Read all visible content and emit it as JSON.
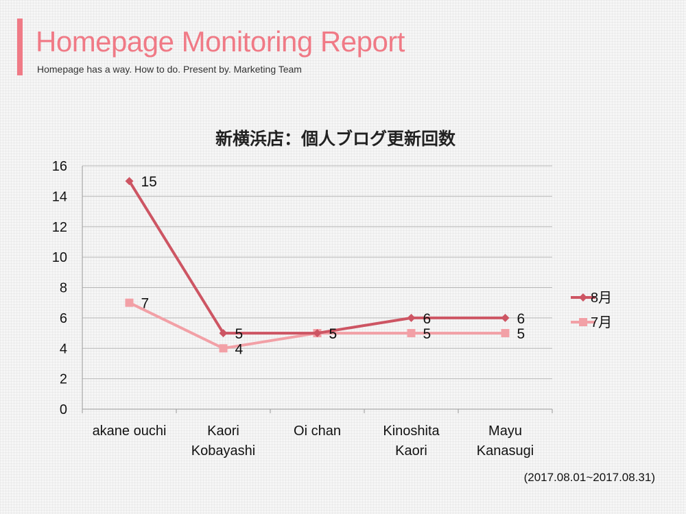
{
  "header": {
    "title": "Homepage Monitoring Report",
    "subtitle": "Homepage has a way. How to do. Present by. Marketing Team",
    "accent_color": "#f07a86"
  },
  "footnote": "(2017.08.01~2017.08.31)",
  "chart_data": {
    "type": "line",
    "title": "新横浜店：個人ブログ更新回数",
    "xlabel": "",
    "ylabel": "",
    "categories": [
      "akane ouchi",
      "Kaori Kobayashi",
      "Oi chan",
      "Kinoshita Kaori",
      "Mayu Kanasugi"
    ],
    "category_lines": [
      [
        "akane ouchi"
      ],
      [
        "Kaori",
        "Kobayashi"
      ],
      [
        "Oi chan"
      ],
      [
        "Kinoshita",
        "Kaori"
      ],
      [
        "Mayu",
        "Kanasugi"
      ]
    ],
    "ylim": [
      0,
      16
    ],
    "yticks": [
      0,
      2,
      4,
      6,
      8,
      10,
      12,
      14,
      16
    ],
    "grid": true,
    "legend_position": "right",
    "series": [
      {
        "name": "8月",
        "values": [
          15,
          5,
          5,
          6,
          6
        ],
        "color": "#cd5563",
        "marker": "diamond"
      },
      {
        "name": "7月",
        "values": [
          7,
          4,
          5,
          5,
          5
        ],
        "color": "#f2a0a6",
        "marker": "square"
      }
    ]
  }
}
